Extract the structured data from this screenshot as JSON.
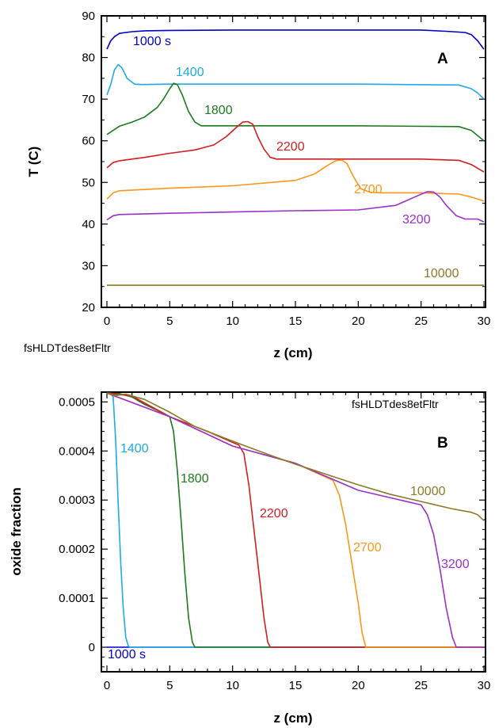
{
  "chart_data": [
    {
      "type": "line",
      "panel_label": "A",
      "note": "fsHLDTdes8etFltr",
      "xlabel": "z (cm)",
      "ylabel": "T (C)",
      "xlim": [
        0,
        30
      ],
      "ylim": [
        20,
        90
      ],
      "xticks": [
        "0",
        "5",
        "10",
        "15",
        "20",
        "25",
        "30"
      ],
      "yticks": [
        "20",
        "30",
        "40",
        "50",
        "60",
        "70",
        "80",
        "90"
      ],
      "grid": false,
      "series": [
        {
          "name": "1000 s",
          "color": "#0000c8",
          "x": [
            0,
            0.3,
            0.6,
            1,
            2,
            3,
            5,
            10,
            15,
            20,
            25,
            27,
            28.5,
            29,
            29.5,
            30
          ],
          "y": [
            82,
            84,
            85,
            85.8,
            86.2,
            86.4,
            86.5,
            86.6,
            86.6,
            86.6,
            86.6,
            86.3,
            86,
            85.5,
            84,
            82
          ]
        },
        {
          "name": "1400",
          "color": "#1eaae6",
          "x": [
            0,
            0.3,
            0.6,
            0.9,
            1.2,
            1.6,
            2.2,
            2.8,
            5,
            10,
            20,
            28,
            29,
            29.5,
            30
          ],
          "y": [
            71,
            73.5,
            77,
            78.3,
            77.5,
            75,
            73.6,
            73.5,
            73.6,
            73.6,
            73.6,
            73.4,
            72.5,
            71.5,
            70
          ]
        },
        {
          "name": "1800",
          "color": "#1e7a1e",
          "x": [
            0,
            0.5,
            1,
            2,
            3,
            4,
            4.5,
            5,
            5.3,
            5.6,
            6,
            6.5,
            7,
            7.5,
            8,
            10,
            20,
            28,
            29,
            30
          ],
          "y": [
            61.5,
            62.5,
            63.5,
            64.5,
            65.7,
            68,
            70,
            72.5,
            73.8,
            73.5,
            71,
            67,
            64.5,
            63.6,
            63.6,
            63.6,
            63.6,
            63.4,
            62.5,
            60
          ]
        },
        {
          "name": "2200",
          "color": "#d21e1e",
          "x": [
            0,
            0.5,
            1,
            3,
            5,
            7,
            8.5,
            9.5,
            10.3,
            10.8,
            11.2,
            11.6,
            12,
            12.5,
            13,
            13.5,
            15,
            20,
            25,
            28,
            29,
            30
          ],
          "y": [
            53.5,
            54.8,
            55.2,
            56,
            57,
            57.8,
            59,
            61,
            63.2,
            64.5,
            64.6,
            64,
            61,
            58,
            56,
            55.6,
            55.6,
            55.6,
            55.6,
            55.3,
            54.3,
            52.5
          ]
        },
        {
          "name": "2700",
          "color": "#ff9619",
          "x": [
            0,
            0.5,
            1,
            5,
            10,
            15,
            16.5,
            17.5,
            18.2,
            18.7,
            19.1,
            19.6,
            20.2,
            21,
            22,
            25,
            28,
            29,
            30
          ],
          "y": [
            46,
            47.5,
            48,
            48.6,
            49.2,
            50.5,
            52,
            54,
            55.2,
            55.4,
            54.5,
            51.5,
            48.5,
            47.6,
            47.5,
            47.5,
            47.2,
            46.5,
            45.5
          ]
        },
        {
          "name": "3200",
          "color": "#9b30c8",
          "x": [
            0,
            0.5,
            1,
            5,
            10,
            15,
            20,
            23,
            24.5,
            25.5,
            26,
            26.5,
            27,
            27.8,
            28.5,
            29.5,
            30
          ],
          "y": [
            41,
            42,
            42.3,
            42.6,
            42.9,
            43.2,
            43.4,
            44.5,
            46.5,
            47.8,
            47.7,
            46.5,
            44.5,
            42,
            41.2,
            41.2,
            40.5
          ]
        },
        {
          "name": "10000",
          "color": "#8a7a28",
          "x": [
            0,
            30
          ],
          "y": [
            25.3,
            25.3
          ]
        }
      ]
    },
    {
      "type": "line",
      "panel_label": "B",
      "note": "fsHLDTdes8etFltr",
      "xlabel": "z (cm)",
      "ylabel": "oxide fraction",
      "xlim": [
        0,
        30
      ],
      "ylim": [
        -5e-05,
        0.00052
      ],
      "xticks": [
        "0",
        "5",
        "10",
        "15",
        "20",
        "25",
        "30"
      ],
      "yticks": [
        "0",
        "0.0001",
        "0.0002",
        "0.0003",
        "0.0004",
        "0.0005"
      ],
      "grid": false,
      "series": [
        {
          "name": "1000 s",
          "color": "#0000c8",
          "x": [
            0,
            30
          ],
          "y": [
            0,
            0
          ]
        },
        {
          "name": "1400",
          "color": "#1eaae6",
          "x": [
            0,
            0.3,
            0.5,
            0.7,
            0.9,
            1.1,
            1.3,
            1.5,
            1.7,
            1.8,
            30
          ],
          "y": [
            0.000518,
            0.000518,
            0.00051,
            0.00042,
            0.00029,
            0.00017,
            8e-05,
            2e-05,
            3e-06,
            0,
            0
          ]
        },
        {
          "name": "1800",
          "color": "#1e7a1e",
          "x": [
            0,
            1,
            2,
            3,
            4,
            5,
            5.3,
            5.6,
            5.9,
            6.2,
            6.5,
            6.8,
            7,
            30
          ],
          "y": [
            0.000518,
            0.000517,
            0.00051,
            0.000495,
            0.000483,
            0.00047,
            0.00044,
            0.00036,
            0.00026,
            0.00015,
            6e-05,
            1e-05,
            0,
            0
          ]
        },
        {
          "name": "2200",
          "color": "#d21e1e",
          "x": [
            0,
            2,
            5,
            8,
            10.5,
            10.9,
            11.3,
            11.7,
            12.1,
            12.5,
            12.8,
            13,
            30
          ],
          "y": [
            0.000518,
            0.000512,
            0.00047,
            0.00044,
            0.000412,
            0.000395,
            0.00033,
            0.00024,
            0.00015,
            6e-05,
            1e-05,
            0,
            0
          ]
        },
        {
          "name": "2700",
          "color": "#ff9619",
          "x": [
            0,
            5,
            10,
            15,
            18,
            18.5,
            19,
            19.5,
            20,
            20.3,
            20.6,
            30
          ],
          "y": [
            0.000518,
            0.00047,
            0.00041,
            0.000375,
            0.00034,
            0.00031,
            0.00025,
            0.00017,
            9e-05,
            3e-05,
            0,
            0
          ]
        },
        {
          "name": "3200",
          "color": "#9b30c8",
          "x": [
            0,
            5,
            10,
            15,
            20,
            25,
            25.5,
            26,
            26.5,
            27,
            27.5,
            27.8,
            30
          ],
          "y": [
            0.000518,
            0.00047,
            0.00041,
            0.000375,
            0.00032,
            0.00029,
            0.00027,
            0.00023,
            0.00016,
            8e-05,
            2e-05,
            0,
            0
          ]
        },
        {
          "name": "10000",
          "color": "#8a7a28",
          "x": [
            0,
            0.7,
            1.5,
            3,
            5,
            7,
            10,
            12.5,
            15,
            17.5,
            20,
            22.5,
            25,
            27.5,
            29,
            29.5,
            30
          ],
          "y": [
            0.000518,
            0.000513,
            0.000516,
            0.000505,
            0.000479,
            0.00045,
            0.00042,
            0.000396,
            0.000373,
            0.000352,
            0.000331,
            0.000312,
            0.000297,
            0.000282,
            0.000275,
            0.00027,
            0.000258
          ]
        }
      ]
    }
  ]
}
